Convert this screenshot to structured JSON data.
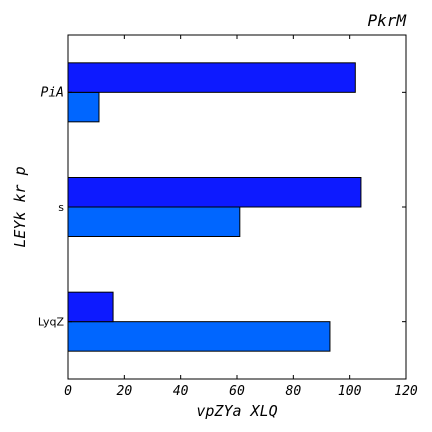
{
  "chart_data": {
    "type": "bar",
    "orientation": "horizontal",
    "title": "PkrM",
    "xlabel": "vpZYa XLQ",
    "ylabel": "LEYk kr p",
    "categories": [
      "LyqZ",
      "s",
      "PiA"
    ],
    "category_label_styles": [
      "plain",
      "plain",
      "italic"
    ],
    "series": [
      {
        "color": "#0066ff",
        "values": [
          93,
          61,
          11
        ]
      },
      {
        "color": "#0d1aff",
        "values": [
          16,
          104,
          102
        ]
      }
    ],
    "xlim": [
      0,
      120
    ],
    "xticks": [
      "0",
      "20",
      "40",
      "60",
      "80",
      "100",
      "120"
    ],
    "grid": false,
    "legend": "none"
  }
}
